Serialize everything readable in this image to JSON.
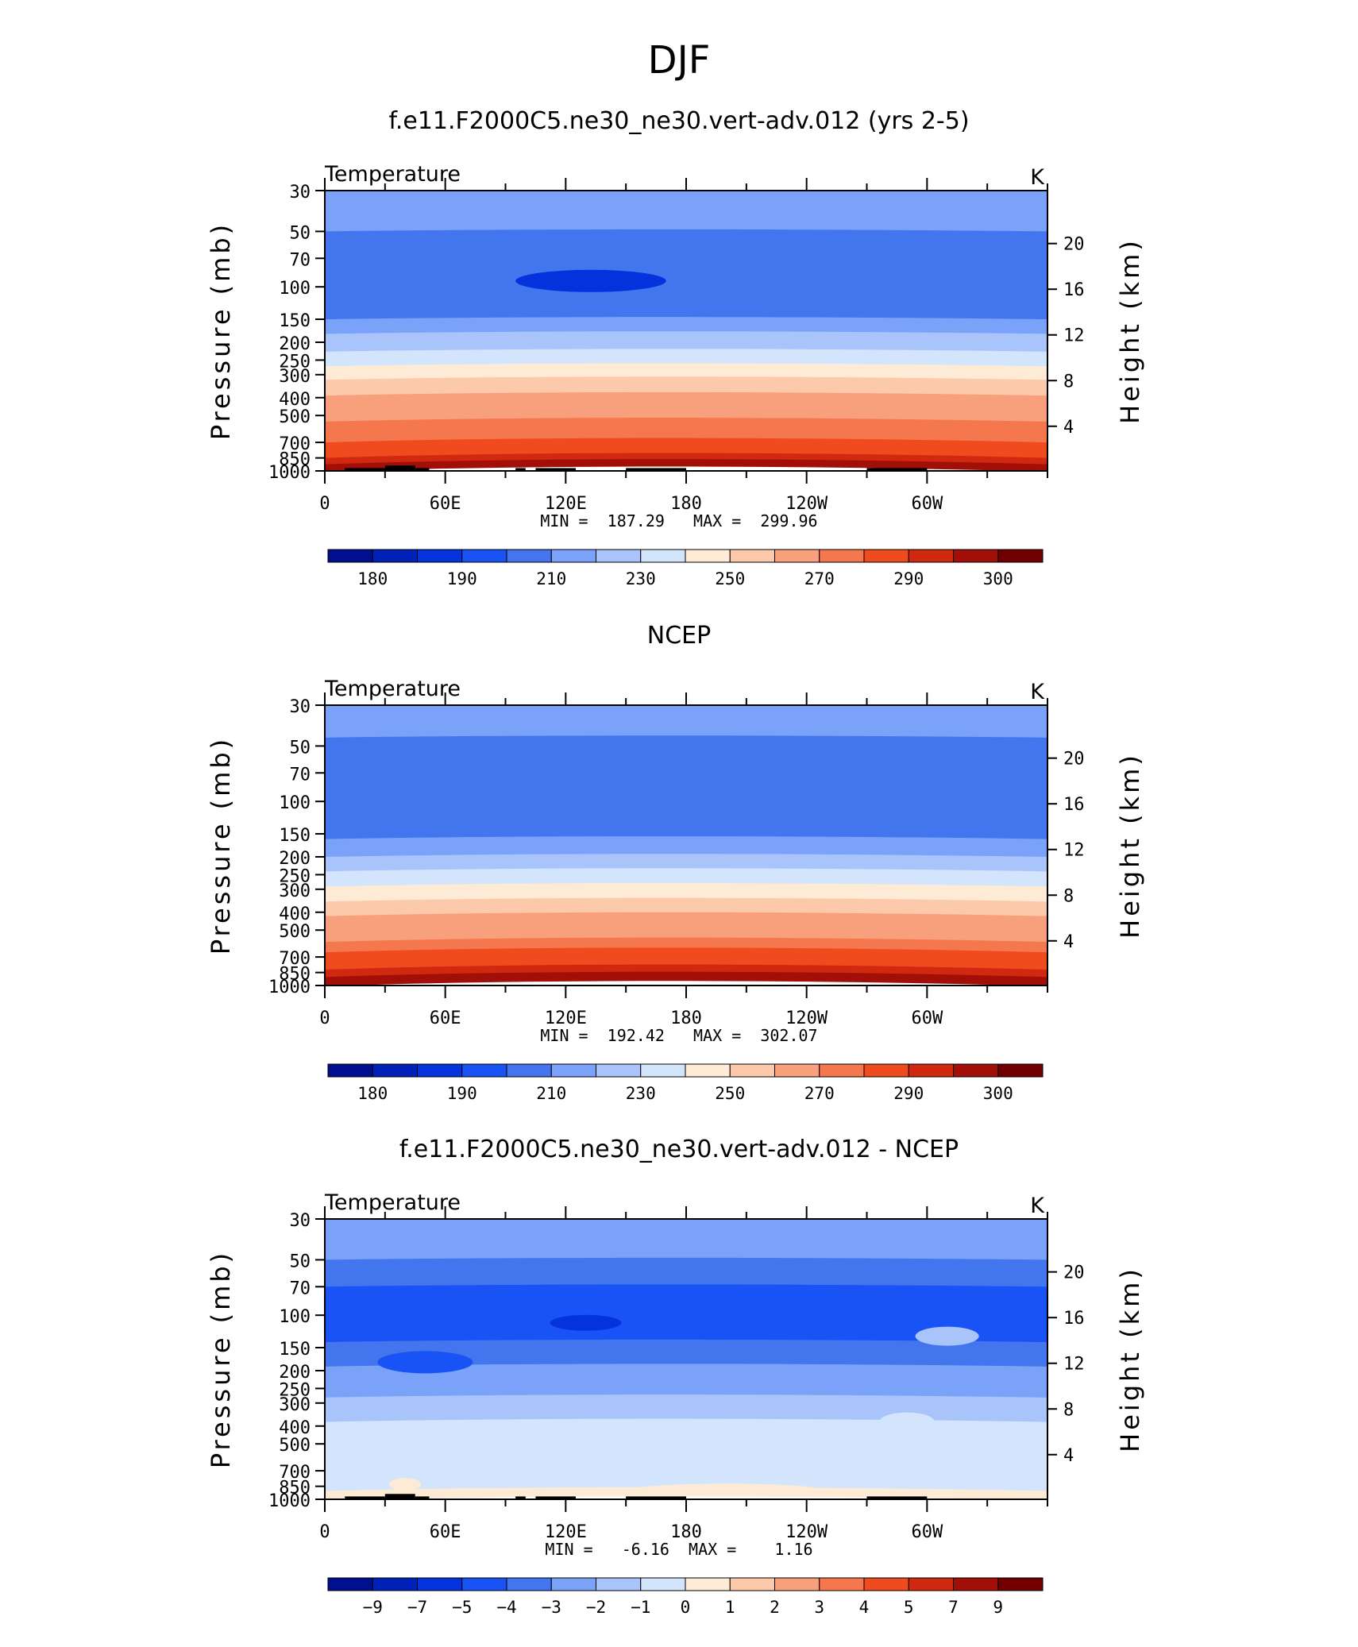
{
  "figure": {
    "title": "DJF"
  },
  "chart_data": [
    {
      "type": "heatmap",
      "title": "f.e11.F2000C5.ne30_ne30.vert-adv.012 (yrs 2-5)",
      "variable": "Temperature",
      "units": "K",
      "ylabel": "Pressure (mb)",
      "ylabel_right": "Height (km)",
      "x_tick_labels": [
        "0",
        "60E",
        "120E",
        "180",
        "120W",
        "60W"
      ],
      "y_tick_labels": [
        "30",
        "50",
        "70",
        "100",
        "150",
        "200",
        "250",
        "300",
        "400",
        "500",
        "700",
        "850",
        "1000"
      ],
      "y_right_tick_labels": [
        "20",
        "16",
        "12",
        "8",
        "4"
      ],
      "stats": "MIN =  187.29   MAX =  299.96",
      "colorbar_labels": [
        "180",
        "190",
        "210",
        "230",
        "250",
        "270",
        "290",
        "300"
      ],
      "has_topography": true,
      "band_levels": [
        210,
        200,
        210,
        220,
        230,
        240,
        250,
        260,
        265,
        270,
        275,
        280,
        285,
        290,
        295
      ],
      "band_boundaries": [
        30,
        50,
        150,
        180,
        225,
        270,
        320,
        390,
        460,
        540,
        620,
        700,
        780,
        850,
        920,
        1000
      ],
      "feature": {
        "label": "below 195 K near 100 mb",
        "lon_range": [
          95,
          170
        ],
        "pressure_range": [
          75,
          115
        ]
      }
    },
    {
      "type": "heatmap",
      "title": "NCEP",
      "variable": "Temperature",
      "units": "K",
      "ylabel": "Pressure (mb)",
      "ylabel_right": "Height (km)",
      "x_tick_labels": [
        "0",
        "60E",
        "120E",
        "180",
        "120W",
        "60W"
      ],
      "y_tick_labels": [
        "30",
        "50",
        "70",
        "100",
        "150",
        "200",
        "250",
        "300",
        "400",
        "500",
        "700",
        "850",
        "1000"
      ],
      "y_right_tick_labels": [
        "20",
        "16",
        "12",
        "8",
        "4"
      ],
      "stats": "MIN =  192.42   MAX =  302.07",
      "colorbar_labels": [
        "180",
        "190",
        "210",
        "230",
        "250",
        "270",
        "290",
        "300"
      ],
      "has_topography": false,
      "band_levels": [
        210,
        205,
        200,
        205,
        215,
        225,
        235,
        245,
        255,
        262,
        268,
        274,
        280,
        286,
        292,
        297
      ],
      "band_boundaries": [
        30,
        45,
        65,
        120,
        160,
        200,
        240,
        290,
        350,
        420,
        500,
        580,
        660,
        740,
        820,
        900,
        1000
      ]
    },
    {
      "type": "heatmap",
      "title": "f.e11.F2000C5.ne30_ne30.vert-adv.012 - NCEP",
      "variable": "Temperature",
      "units": "K",
      "ylabel": "Pressure (mb)",
      "ylabel_right": "Height (km)",
      "x_tick_labels": [
        "0",
        "60E",
        "120E",
        "180",
        "120W",
        "60W"
      ],
      "y_tick_labels": [
        "30",
        "50",
        "70",
        "100",
        "150",
        "200",
        "250",
        "300",
        "400",
        "500",
        "700",
        "850",
        "1000"
      ],
      "y_right_tick_labels": [
        "20",
        "16",
        "12",
        "8",
        "4"
      ],
      "stats": "MIN =   -6.16  MAX =    1.16",
      "colorbar_labels": [
        "−9",
        "−7",
        "−5",
        "−4",
        "−3",
        "−2",
        "−1",
        "0",
        "1",
        "2",
        "3",
        "4",
        "5",
        "7",
        "9"
      ],
      "has_topography": true,
      "band_levels": [
        -2.5,
        -3.5,
        -4.5,
        -3.5,
        -2.5,
        -1.5,
        -0.5,
        -0.5,
        0.5
      ],
      "band_boundaries": [
        30,
        50,
        70,
        140,
        190,
        280,
        380,
        700,
        900,
        1000
      ]
    }
  ],
  "colorbar_colors": [
    "#000f8f",
    "#0022b8",
    "#0433dd",
    "#1a53f5",
    "#4275ee",
    "#7aa2f8",
    "#a9c4fa",
    "#d3e5fc",
    "#fdebd6",
    "#fcc9ab",
    "#f8a07c",
    "#f5774e",
    "#f04a1f",
    "#d12810",
    "#a20f08",
    "#730000"
  ],
  "colorbar_colors_diff": [
    "#000f8f",
    "#0022b8",
    "#0433dd",
    "#1a53f5",
    "#4275ee",
    "#7aa2f8",
    "#a9c4fa",
    "#d3e5fc",
    "#fdebd6",
    "#fcc9ab",
    "#f8a07c",
    "#f5774e",
    "#f04a1f",
    "#d12810",
    "#a20f08",
    "#730000"
  ]
}
